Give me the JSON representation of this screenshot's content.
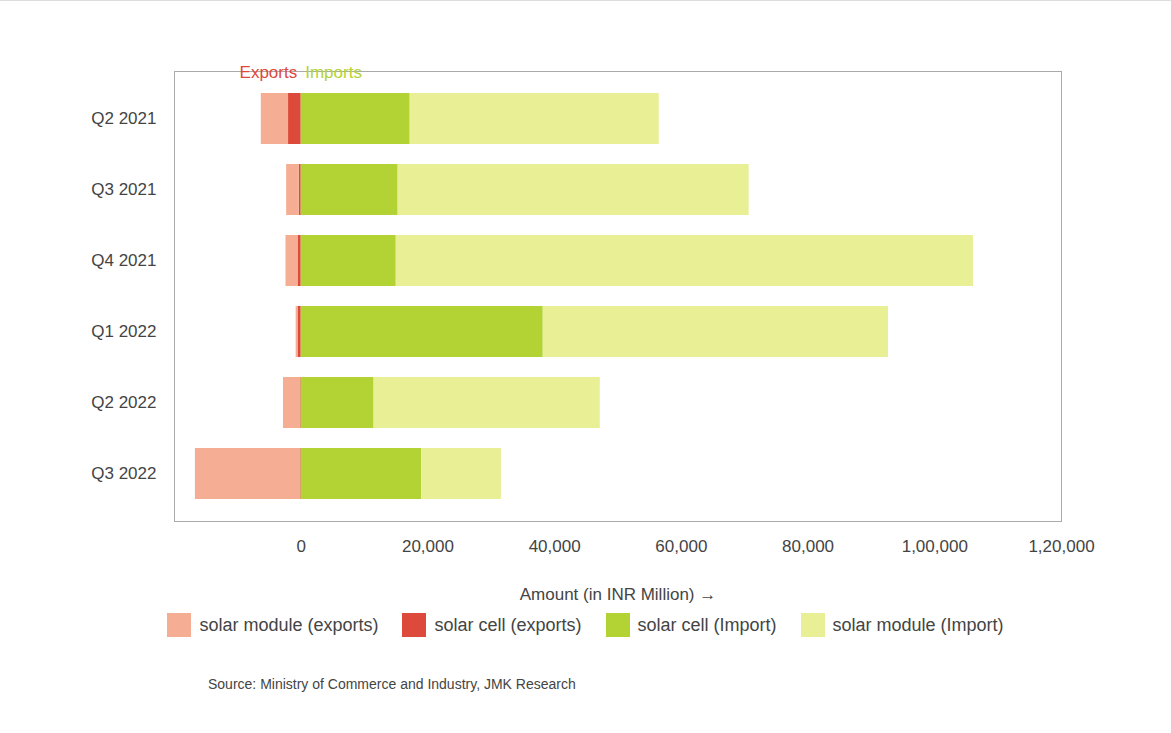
{
  "chart_data": {
    "type": "bar",
    "orientation": "horizontal",
    "stacked": true,
    "grid": false,
    "xlabel": "Amount (in INR Million)",
    "annotations": [
      {
        "text": "Exports",
        "color": "#dd4a3b"
      },
      {
        "text": "Imports",
        "color": "#b3d335"
      }
    ],
    "source": "Source: Ministry of Commerce and Industry, JMK Research",
    "categories": [
      "Q2 2021",
      "Q3 2021",
      "Q4 2021",
      "Q1 2022",
      "Q2 2022",
      "Q3 2022"
    ],
    "series": [
      {
        "name": "solar module (exports)",
        "color": "#f5ad93",
        "values": [
          -4300,
          -2000,
          -1900,
          -300,
          -2700,
          -16600
        ]
      },
      {
        "name": "solar cell (exports)",
        "color": "#dd4a3b",
        "values": [
          -2000,
          -300,
          -500,
          -500,
          -100,
          -100
        ]
      },
      {
        "name": "solar cell (Import)",
        "color": "#b3d335",
        "values": [
          17200,
          15300,
          15000,
          38200,
          11500,
          19000
        ]
      },
      {
        "name": "solar module (Import)",
        "color": "#e8ef94",
        "values": [
          39300,
          55400,
          91100,
          54500,
          35700,
          12600
        ]
      }
    ],
    "xlim": [
      -20000,
      120000
    ],
    "xticks": [
      0,
      {
        "value": 20000,
        "label": "20,000"
      },
      {
        "value": 40000,
        "label": "40,000"
      },
      {
        "value": 60000,
        "label": "60,000"
      },
      {
        "value": 80000,
        "label": "80,000"
      },
      {
        "value": 100000,
        "label": "1,00,000"
      },
      {
        "value": 120000,
        "label": "1,20,000"
      }
    ],
    "legend": "bottom"
  }
}
